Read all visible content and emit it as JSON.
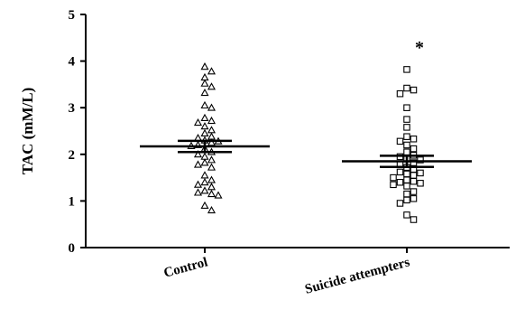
{
  "chart_data": {
    "type": "scatter",
    "ylabel": "TAC (mM/L)",
    "ylim": [
      0,
      5
    ],
    "yticks": [
      "0",
      "1",
      "2",
      "3",
      "4",
      "5"
    ],
    "categories": [
      "Control",
      "Suicide attempters"
    ],
    "grid": false,
    "series": [
      {
        "category": "Control",
        "marker": "triangle",
        "mean": 2.17,
        "sem_low": 2.05,
        "sem_high": 2.29,
        "values": [
          3.88,
          3.78,
          3.65,
          3.52,
          3.45,
          3.32,
          3.05,
          3.0,
          2.78,
          2.72,
          2.68,
          2.6,
          2.52,
          2.45,
          2.38,
          2.35,
          2.3,
          2.28,
          2.25,
          2.2,
          2.18,
          2.12,
          2.05,
          2.0,
          1.95,
          1.88,
          1.82,
          1.78,
          1.72,
          1.55,
          1.45,
          1.4,
          1.35,
          1.3,
          1.22,
          1.18,
          1.15,
          1.12,
          0.9,
          0.8
        ]
      },
      {
        "category": "Suicide attempters",
        "marker": "square",
        "mean": 1.85,
        "sem_low": 1.73,
        "sem_high": 1.97,
        "values": [
          3.82,
          3.42,
          3.38,
          3.3,
          3.0,
          2.75,
          2.58,
          2.38,
          2.33,
          2.28,
          2.2,
          2.12,
          2.05,
          1.98,
          1.95,
          1.9,
          1.88,
          1.82,
          1.78,
          1.72,
          1.68,
          1.62,
          1.6,
          1.58,
          1.55,
          1.5,
          1.45,
          1.42,
          1.4,
          1.38,
          1.35,
          1.32,
          1.2,
          1.15,
          1.05,
          1.02,
          0.95,
          0.7,
          0.6
        ]
      }
    ],
    "annotations": [
      {
        "category": "Suicide attempters",
        "y": 4.4,
        "text": "*"
      }
    ]
  }
}
